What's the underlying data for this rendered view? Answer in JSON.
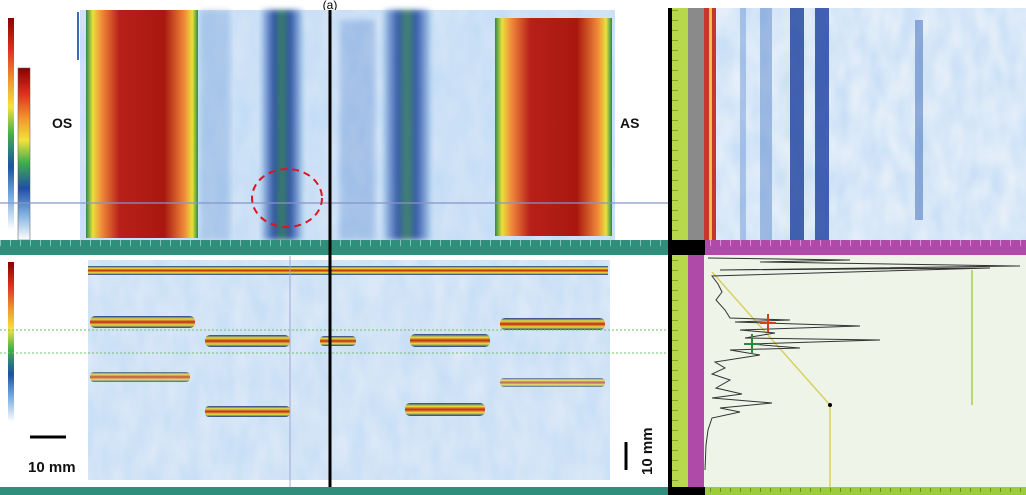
{
  "caption": "(a)",
  "labels": {
    "left": "OS",
    "right": "AS"
  },
  "scale_bars": {
    "horizontal": "10 mm",
    "vertical": "10 mm"
  }
}
